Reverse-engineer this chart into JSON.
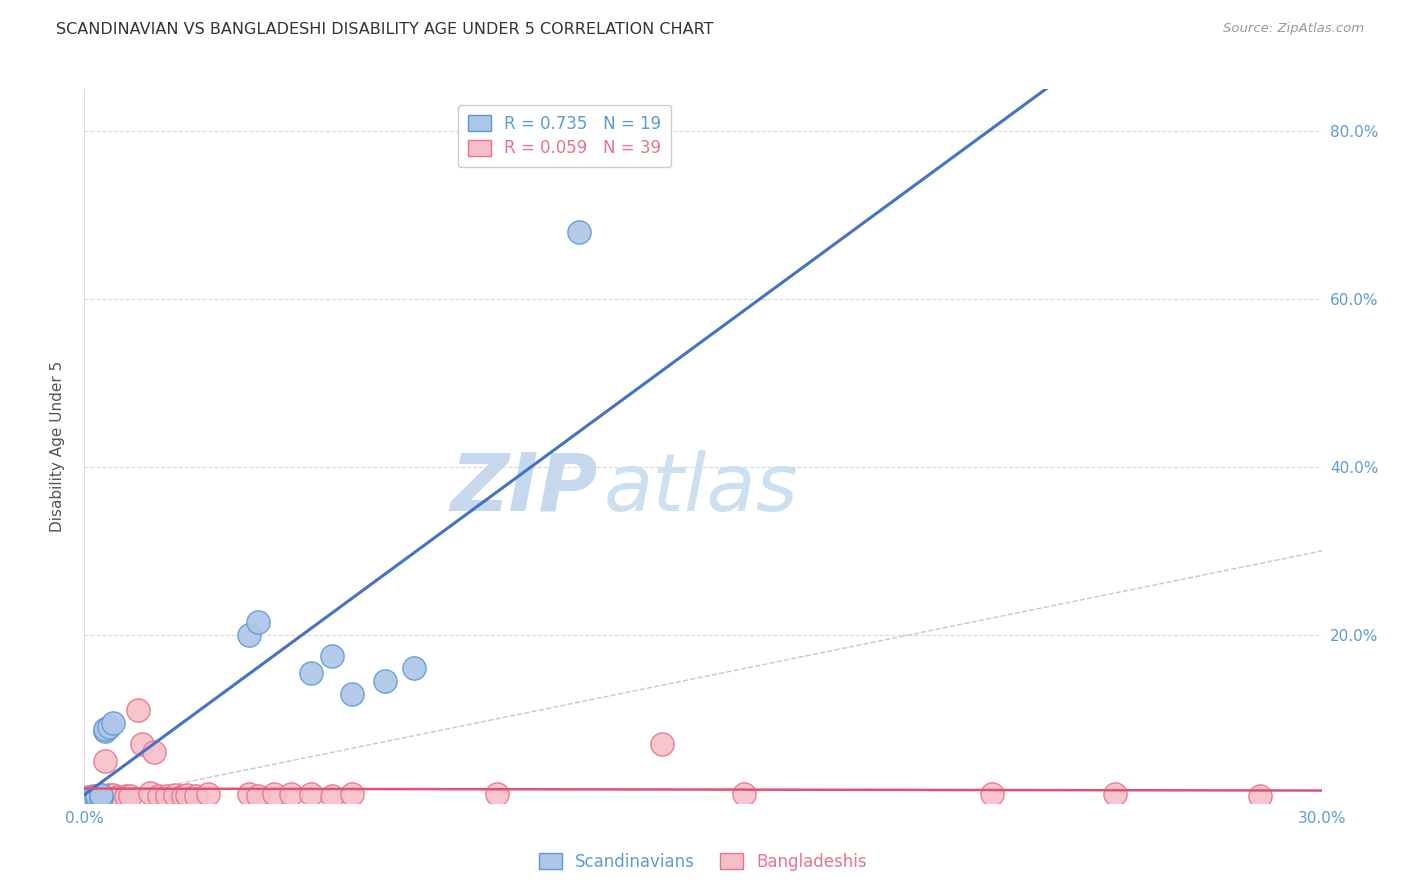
{
  "title": "SCANDINAVIAN VS BANGLADESHI DISABILITY AGE UNDER 5 CORRELATION CHART",
  "source": "Source: ZipAtlas.com",
  "ylabel": "Disability Age Under 5",
  "xlim": [
    0.0,
    0.3
  ],
  "ylim": [
    0.0,
    0.85
  ],
  "scandinavian_R": "0.735",
  "scandinavian_N": "19",
  "bangladeshi_R": "0.059",
  "bangladeshi_N": "39",
  "scand_color": "#aec6e8",
  "scand_edge_color": "#5b9bd5",
  "bang_color": "#f5bfc8",
  "bang_edge_color": "#e8738a",
  "regression_line_scand_color": "#4472c4",
  "regression_line_bang_color": "#e05070",
  "diagonal_color": "#b0b0b0",
  "background_color": "#ffffff",
  "grid_color": "#d8d8e0",
  "text_color": "#5b9bd5",
  "watermark_zip_color": "#d0e4f5",
  "watermark_atlas_color": "#c8ddf0",
  "scand_x": [
    0.001,
    0.002,
    0.002,
    0.003,
    0.003,
    0.004,
    0.004,
    0.005,
    0.005,
    0.006,
    0.007,
    0.04,
    0.042,
    0.055,
    0.06,
    0.065,
    0.073,
    0.08,
    0.12
  ],
  "scand_y": [
    0.005,
    0.004,
    0.007,
    0.005,
    0.008,
    0.006,
    0.009,
    0.085,
    0.088,
    0.09,
    0.095,
    0.2,
    0.215,
    0.155,
    0.175,
    0.13,
    0.145,
    0.16,
    0.68
  ],
  "bang_x": [
    0.001,
    0.001,
    0.002,
    0.002,
    0.003,
    0.003,
    0.004,
    0.004,
    0.005,
    0.005,
    0.006,
    0.007,
    0.008,
    0.01,
    0.011,
    0.013,
    0.014,
    0.016,
    0.017,
    0.018,
    0.02,
    0.022,
    0.024,
    0.025,
    0.027,
    0.03,
    0.04,
    0.042,
    0.046,
    0.05,
    0.055,
    0.06,
    0.065,
    0.1,
    0.14,
    0.16,
    0.22,
    0.25,
    0.285
  ],
  "bang_y": [
    0.005,
    0.007,
    0.006,
    0.008,
    0.005,
    0.007,
    0.006,
    0.009,
    0.007,
    0.05,
    0.009,
    0.009,
    0.007,
    0.008,
    0.008,
    0.11,
    0.07,
    0.012,
    0.06,
    0.008,
    0.008,
    0.009,
    0.008,
    0.009,
    0.008,
    0.01,
    0.01,
    0.008,
    0.01,
    0.01,
    0.01,
    0.008,
    0.01,
    0.01,
    0.07,
    0.01,
    0.01,
    0.01,
    0.008
  ],
  "ytick_positions": [
    0.2,
    0.4,
    0.6,
    0.8
  ],
  "ytick_labels": [
    "20.0%",
    "40.0%",
    "60.0%",
    "80.0%"
  ],
  "xtick_positions": [
    0.0,
    0.3
  ],
  "xtick_labels": [
    "0.0%",
    "30.0%"
  ]
}
